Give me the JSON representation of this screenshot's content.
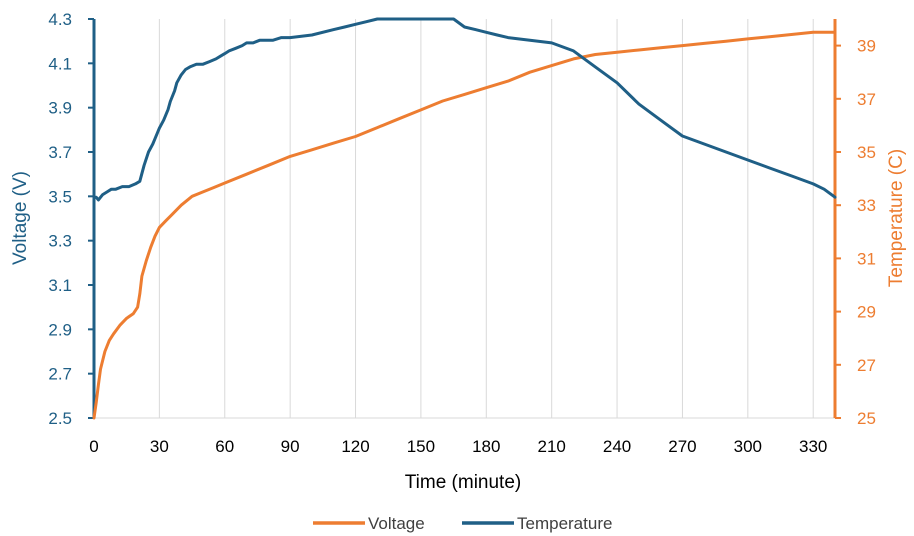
{
  "chart_data": {
    "type": "line",
    "title": "",
    "xlabel": "Time (minute)",
    "ylabel_left": "Voltage (V)",
    "ylabel_right": "Temperature (C)",
    "xlim": [
      0,
      340
    ],
    "ylim_left": [
      2.5,
      4.3
    ],
    "ylim_right": [
      25,
      40
    ],
    "x_ticks": [
      0,
      30,
      60,
      90,
      120,
      150,
      180,
      210,
      240,
      270,
      300,
      330
    ],
    "y_left_ticks": [
      "2.5",
      "2.7",
      "2.9",
      "3.1",
      "3.3",
      "3.5",
      "3.7",
      "3.9",
      "4.1",
      "4.3"
    ],
    "y_right_ticks": [
      "25",
      "27",
      "29",
      "31",
      "33",
      "35",
      "37",
      "39"
    ],
    "grid": "vertical",
    "legend_position": "bottom",
    "colors": {
      "voltage": "#ED7D31",
      "temperature": "#1F5F86",
      "grid": "#d9d9d9"
    },
    "series": [
      {
        "name": "Voltage",
        "axis": "left",
        "x": [
          0,
          1,
          2,
          3,
          5,
          7,
          9,
          12,
          15,
          18,
          20,
          21,
          22,
          24,
          26,
          28,
          30,
          33,
          36,
          40,
          45,
          50,
          55,
          60,
          70,
          80,
          90,
          100,
          110,
          120,
          130,
          140,
          150,
          160,
          170,
          180,
          190,
          200,
          210,
          220,
          230,
          240,
          250,
          260,
          270,
          280,
          290,
          300,
          310,
          320,
          330,
          340
        ],
        "y": [
          2.5,
          2.57,
          2.65,
          2.72,
          2.8,
          2.85,
          2.88,
          2.92,
          2.95,
          2.97,
          3.0,
          3.06,
          3.14,
          3.21,
          3.27,
          3.32,
          3.36,
          3.39,
          3.42,
          3.46,
          3.5,
          3.52,
          3.54,
          3.56,
          3.6,
          3.64,
          3.68,
          3.71,
          3.74,
          3.77,
          3.81,
          3.85,
          3.89,
          3.93,
          3.96,
          3.99,
          4.02,
          4.06,
          4.09,
          4.12,
          4.14,
          4.15,
          4.16,
          4.17,
          4.18,
          4.19,
          4.2,
          4.21,
          4.22,
          4.23,
          4.24,
          4.24
        ]
      },
      {
        "name": "Temperature",
        "axis": "right",
        "x": [
          0,
          1,
          2,
          4,
          6,
          8,
          10,
          13,
          16,
          19,
          21,
          23,
          25,
          27,
          28,
          30,
          32,
          34,
          35,
          37,
          38,
          40,
          42,
          44,
          47,
          50,
          53,
          56,
          58,
          60,
          62,
          65,
          68,
          70,
          73,
          76,
          79,
          82,
          86,
          90,
          100,
          110,
          115,
          120,
          125,
          130,
          140,
          150,
          160,
          165,
          170,
          175,
          180,
          185,
          190,
          200,
          210,
          220,
          230,
          240,
          250,
          260,
          270,
          280,
          290,
          300,
          310,
          320,
          330,
          335,
          340
        ],
        "y": [
          33.3,
          33.3,
          33.2,
          33.4,
          33.5,
          33.6,
          33.6,
          33.7,
          33.7,
          33.8,
          33.9,
          34.5,
          35.0,
          35.3,
          35.5,
          35.9,
          36.2,
          36.6,
          36.9,
          37.3,
          37.6,
          37.9,
          38.1,
          38.2,
          38.3,
          38.3,
          38.4,
          38.5,
          38.6,
          38.7,
          38.8,
          38.9,
          39.0,
          39.1,
          39.1,
          39.2,
          39.2,
          39.2,
          39.3,
          39.3,
          39.4,
          39.6,
          39.7,
          39.8,
          39.9,
          40.0,
          40.0,
          40.0,
          40.0,
          40.0,
          39.7,
          39.6,
          39.5,
          39.4,
          39.3,
          39.2,
          39.1,
          38.8,
          38.2,
          37.6,
          36.8,
          36.2,
          35.6,
          35.3,
          35.0,
          34.7,
          34.4,
          34.1,
          33.8,
          33.6,
          33.3
        ]
      }
    ]
  }
}
